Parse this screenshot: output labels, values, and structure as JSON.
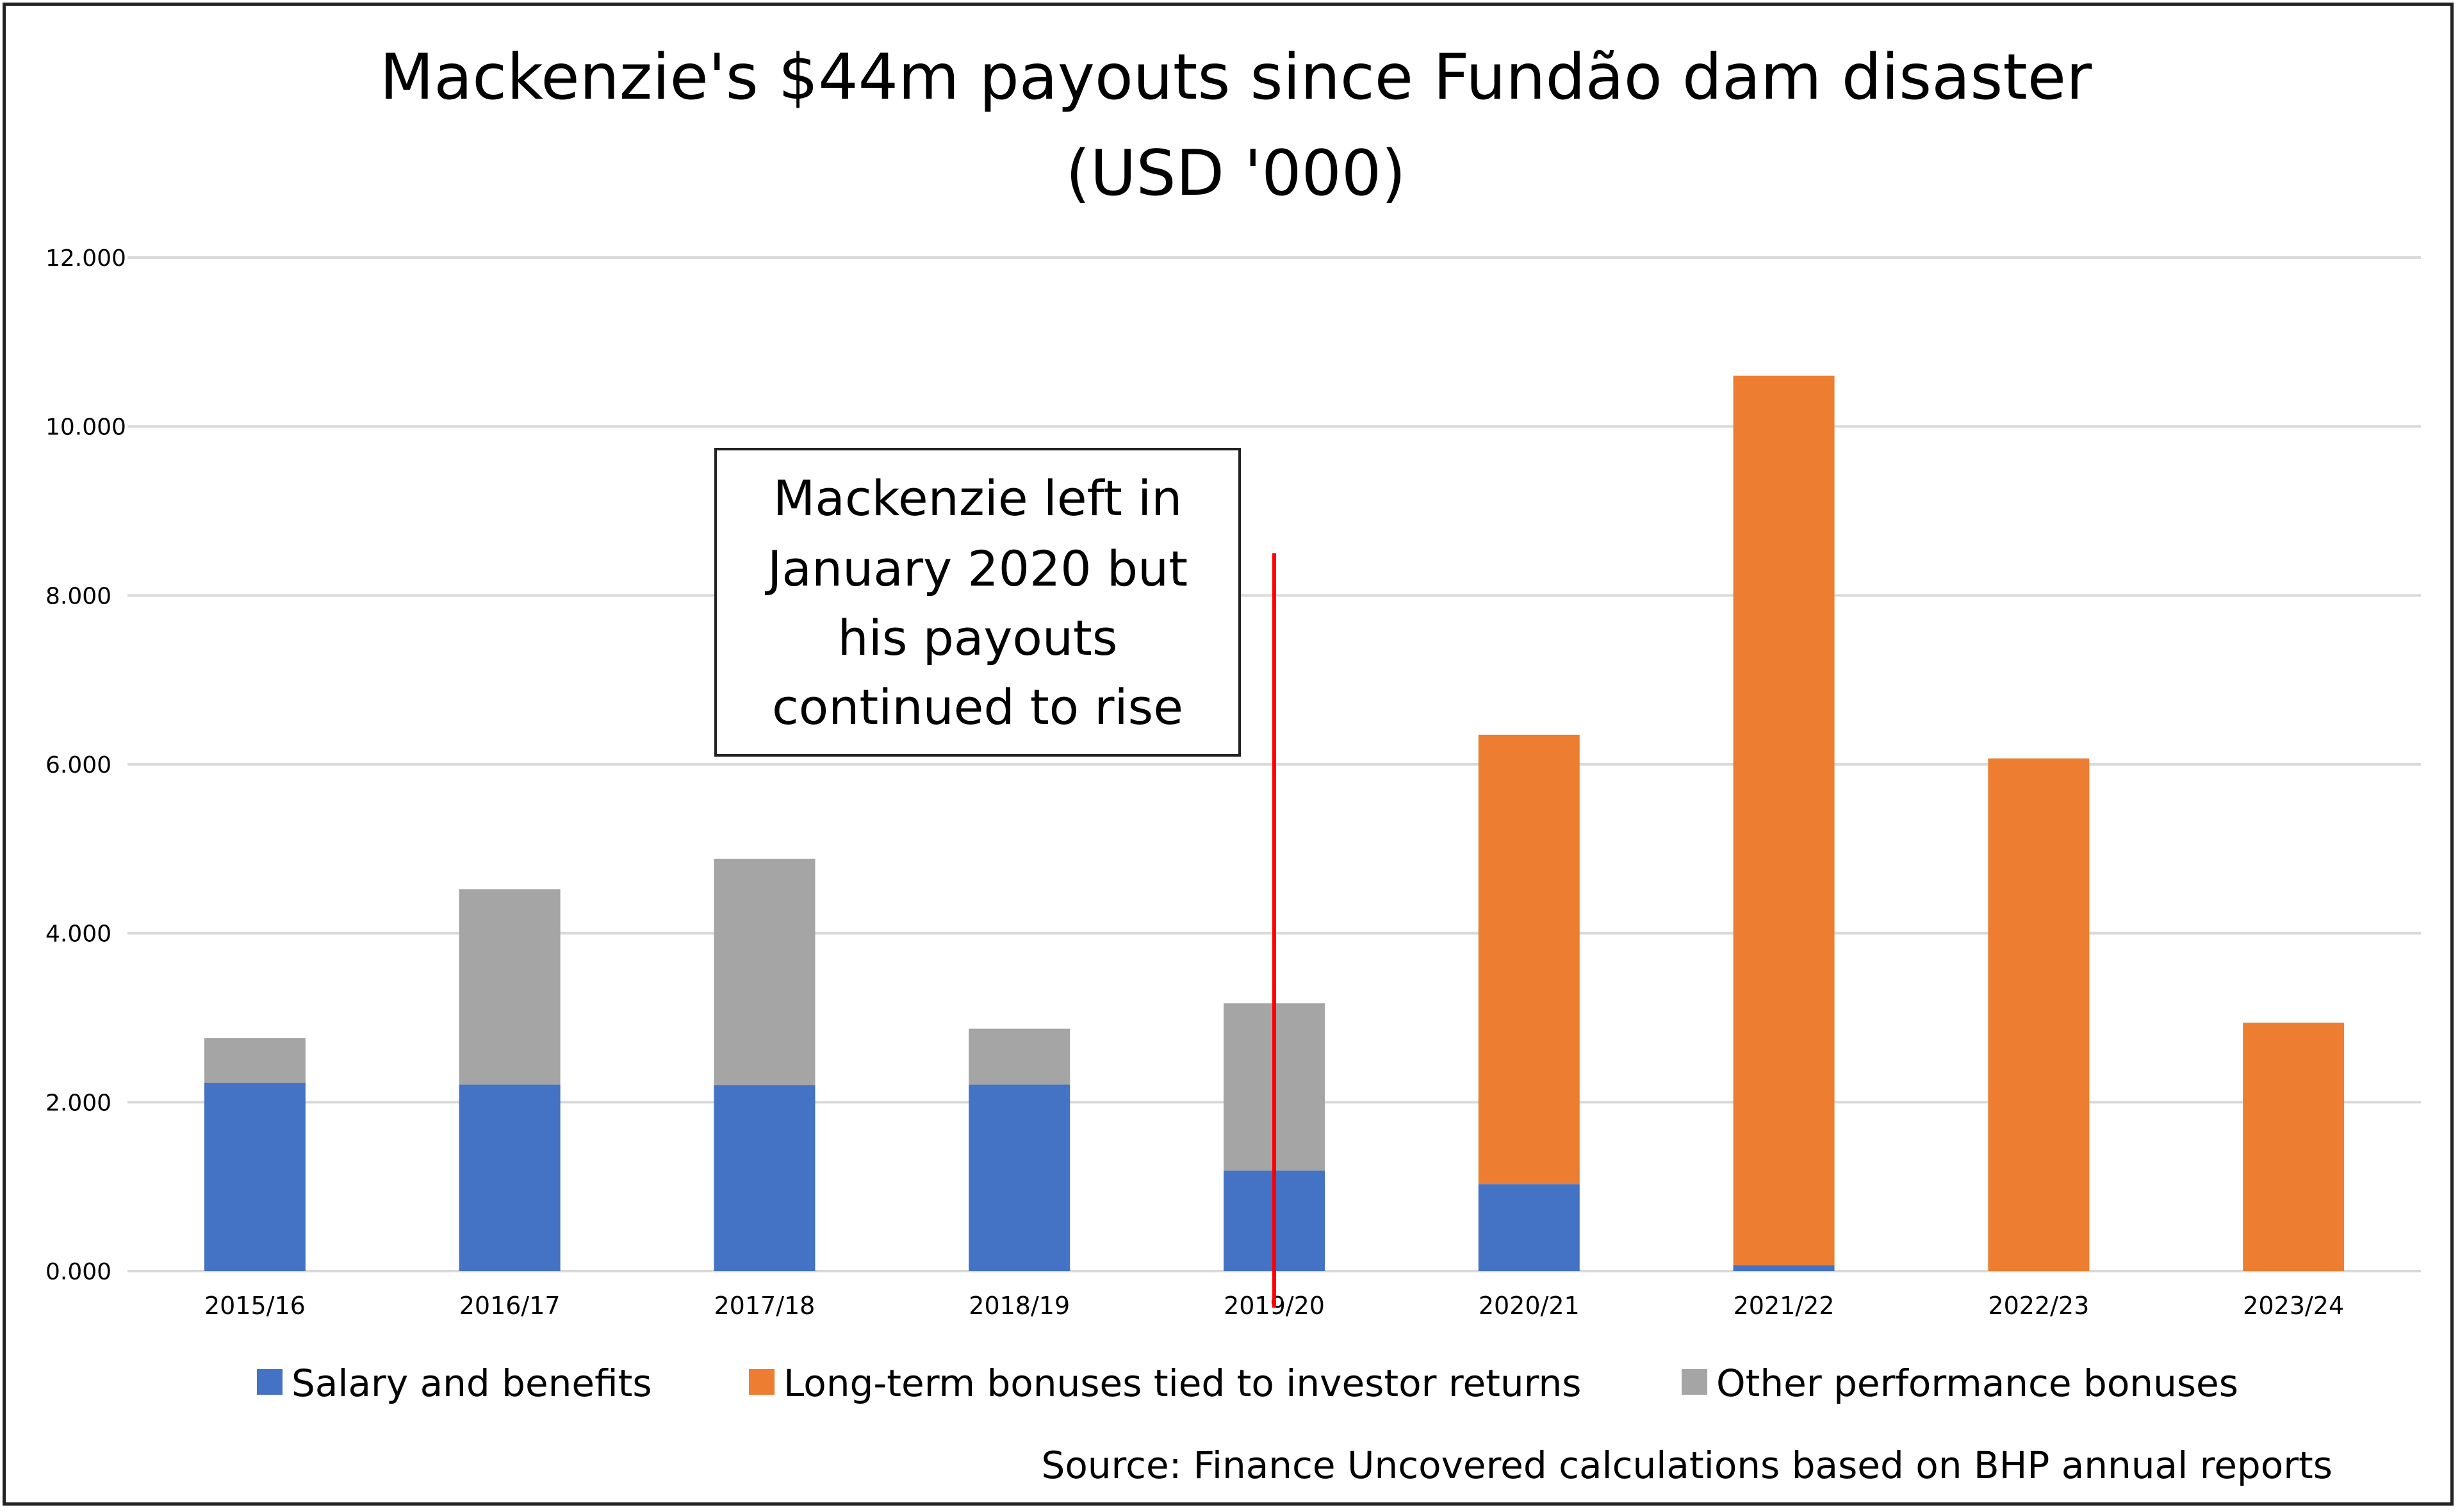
{
  "chart_data": {
    "type": "bar",
    "stacked": true,
    "title_lines": [
      "Mackenzie's $44m payouts since Fundão dam disaster",
      "(USD '000)"
    ],
    "categories": [
      "2015/16",
      "2016/17",
      "2017/18",
      "2018/19",
      "2019/20",
      "2020/21",
      "2021/22",
      "2022/23",
      "2023/24"
    ],
    "series": [
      {
        "name": "Salary and benefits",
        "color": "#4472C4",
        "values": [
          2230,
          2210,
          2200,
          2210,
          1190,
          1030,
          70,
          0,
          0
        ]
      },
      {
        "name": "Long-term bonuses tied to investor returns",
        "color": "#ED7D31",
        "values": [
          0,
          0,
          0,
          0,
          0,
          5320,
          10530,
          6070,
          2940
        ]
      },
      {
        "name": "Other performance bonuses",
        "color": "#A5A5A5",
        "values": [
          530,
          2310,
          2680,
          660,
          1980,
          0,
          0,
          0,
          0
        ]
      }
    ],
    "y_ticks": [
      "0.000",
      "2.000",
      "4.000",
      "6.000",
      "8.000",
      "10.000",
      "12.000"
    ],
    "ylim": [
      0,
      12000
    ],
    "grid": true,
    "legend_position": "bottom",
    "annotation": {
      "lines": [
        "Mackenzie left in",
        "January 2020 but",
        "his payouts",
        "continued to rise"
      ],
      "marker_category": "2019/20",
      "marker_top_value": 8500,
      "marker_color": "#FF0000"
    },
    "source": "Source: Finance Uncovered calculations based on BHP annual reports"
  }
}
